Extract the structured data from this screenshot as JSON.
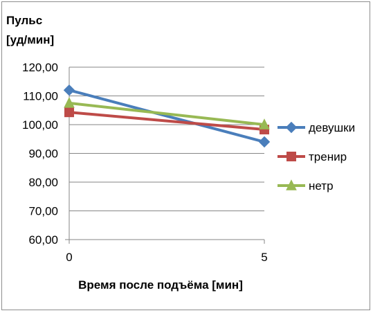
{
  "chart_data": {
    "type": "line",
    "ylabel_lines": [
      "Пульс",
      "[уд/мин]"
    ],
    "xlabel": "Время после подъёма [мин]",
    "categories": [
      "0",
      "5"
    ],
    "x": [
      0,
      5
    ],
    "ylim": [
      60,
      120
    ],
    "yticks": [
      60,
      70,
      80,
      90,
      100,
      110,
      120
    ],
    "ytick_labels": [
      "60,00",
      "70,00",
      "80,00",
      "90,00",
      "100,00",
      "110,00",
      "120,00"
    ],
    "grid": "horizontal",
    "legend_position": "right",
    "series": [
      {
        "name": "девушки",
        "values": [
          112,
          94
        ],
        "color": "#4a7ebb",
        "marker": "diamond"
      },
      {
        "name": "тренир",
        "values": [
          104.3,
          98.3
        ],
        "color": "#be4b48",
        "marker": "square"
      },
      {
        "name": "нетр",
        "values": [
          107.5,
          100
        ],
        "color": "#98b954",
        "marker": "triangle"
      }
    ]
  }
}
